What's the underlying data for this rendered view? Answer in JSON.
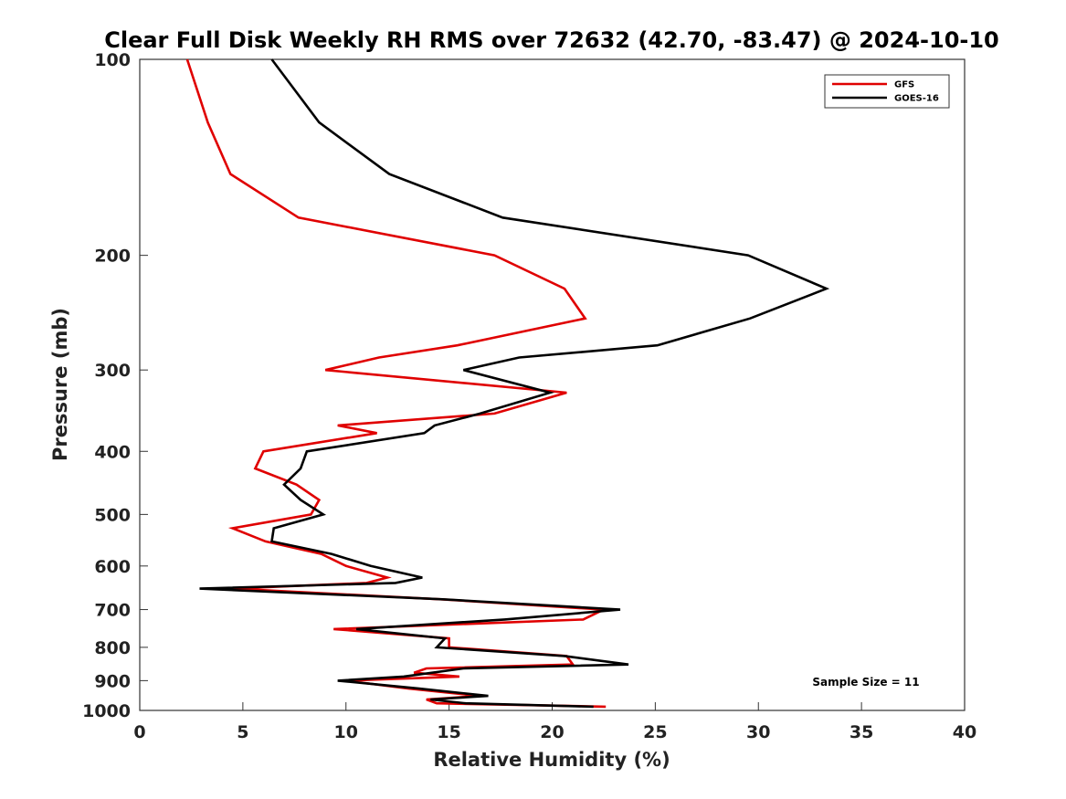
{
  "chart_data": {
    "type": "line",
    "title": "Clear Full Disk Weekly RH RMS over 72632 (42.70, -83.47) @ 2024-10-10",
    "xlabel": "Relative Humidity (%)",
    "ylabel": "Pressure (mb)",
    "xlim": [
      0,
      40
    ],
    "ylim": [
      100,
      1000
    ],
    "y_scale": "log",
    "y_reversed": true,
    "x_ticks": [
      0,
      5,
      10,
      15,
      20,
      25,
      30,
      35,
      40
    ],
    "y_ticks": [
      100,
      200,
      300,
      400,
      500,
      600,
      700,
      800,
      900,
      1000
    ],
    "grid": false,
    "legend_position": "top-right",
    "annotation": "Sample Size = 11",
    "series": [
      {
        "name": "GFS",
        "color": "#e00000",
        "points": [
          [
            2.3,
            100
          ],
          [
            3.3,
            125
          ],
          [
            4.4,
            150
          ],
          [
            7.7,
            175
          ],
          [
            17.2,
            200
          ],
          [
            20.6,
            225
          ],
          [
            21.6,
            250
          ],
          [
            15.4,
            275
          ],
          [
            11.6,
            287
          ],
          [
            9.0,
            300
          ],
          [
            20.7,
            325
          ],
          [
            17.2,
            350
          ],
          [
            9.6,
            365
          ],
          [
            11.5,
            375
          ],
          [
            6.0,
            400
          ],
          [
            5.6,
            425
          ],
          [
            7.6,
            450
          ],
          [
            8.7,
            475
          ],
          [
            8.3,
            500
          ],
          [
            4.5,
            525
          ],
          [
            6.1,
            550
          ],
          [
            8.8,
            575
          ],
          [
            10.0,
            600
          ],
          [
            12.0,
            625
          ],
          [
            11.0,
            637
          ],
          [
            4.5,
            650
          ],
          [
            14.6,
            675
          ],
          [
            22.5,
            700
          ],
          [
            21.5,
            725
          ],
          [
            9.4,
            750
          ],
          [
            15.0,
            775
          ],
          [
            15.0,
            800
          ],
          [
            20.7,
            825
          ],
          [
            21.0,
            850
          ],
          [
            13.9,
            862
          ],
          [
            13.3,
            875
          ],
          [
            15.5,
            887
          ],
          [
            10.0,
            900
          ],
          [
            13.0,
            925
          ],
          [
            16.5,
            950
          ],
          [
            13.9,
            962
          ],
          [
            14.4,
            975
          ],
          [
            22.6,
            987
          ]
        ]
      },
      {
        "name": "GOES-16",
        "color": "#000000",
        "points": [
          [
            6.4,
            100
          ],
          [
            8.7,
            125
          ],
          [
            12.1,
            150
          ],
          [
            17.6,
            175
          ],
          [
            29.5,
            200
          ],
          [
            33.3,
            225
          ],
          [
            29.6,
            250
          ],
          [
            25.1,
            275
          ],
          [
            18.4,
            287
          ],
          [
            15.7,
            300
          ],
          [
            19.9,
            325
          ],
          [
            16.5,
            350
          ],
          [
            14.3,
            365
          ],
          [
            13.8,
            375
          ],
          [
            8.1,
            400
          ],
          [
            7.8,
            425
          ],
          [
            7.0,
            450
          ],
          [
            7.8,
            475
          ],
          [
            8.9,
            500
          ],
          [
            6.5,
            525
          ],
          [
            6.4,
            550
          ],
          [
            9.3,
            575
          ],
          [
            11.2,
            600
          ],
          [
            13.7,
            625
          ],
          [
            12.4,
            637
          ],
          [
            2.9,
            650
          ],
          [
            14.7,
            675
          ],
          [
            23.3,
            700
          ],
          [
            17.7,
            725
          ],
          [
            10.5,
            750
          ],
          [
            14.8,
            775
          ],
          [
            14.4,
            800
          ],
          [
            20.6,
            825
          ],
          [
            23.7,
            850
          ],
          [
            15.7,
            862
          ],
          [
            12.8,
            887
          ],
          [
            9.6,
            900
          ],
          [
            13.5,
            925
          ],
          [
            16.9,
            950
          ],
          [
            14.1,
            962
          ],
          [
            15.8,
            975
          ],
          [
            22.0,
            987
          ]
        ]
      }
    ]
  }
}
